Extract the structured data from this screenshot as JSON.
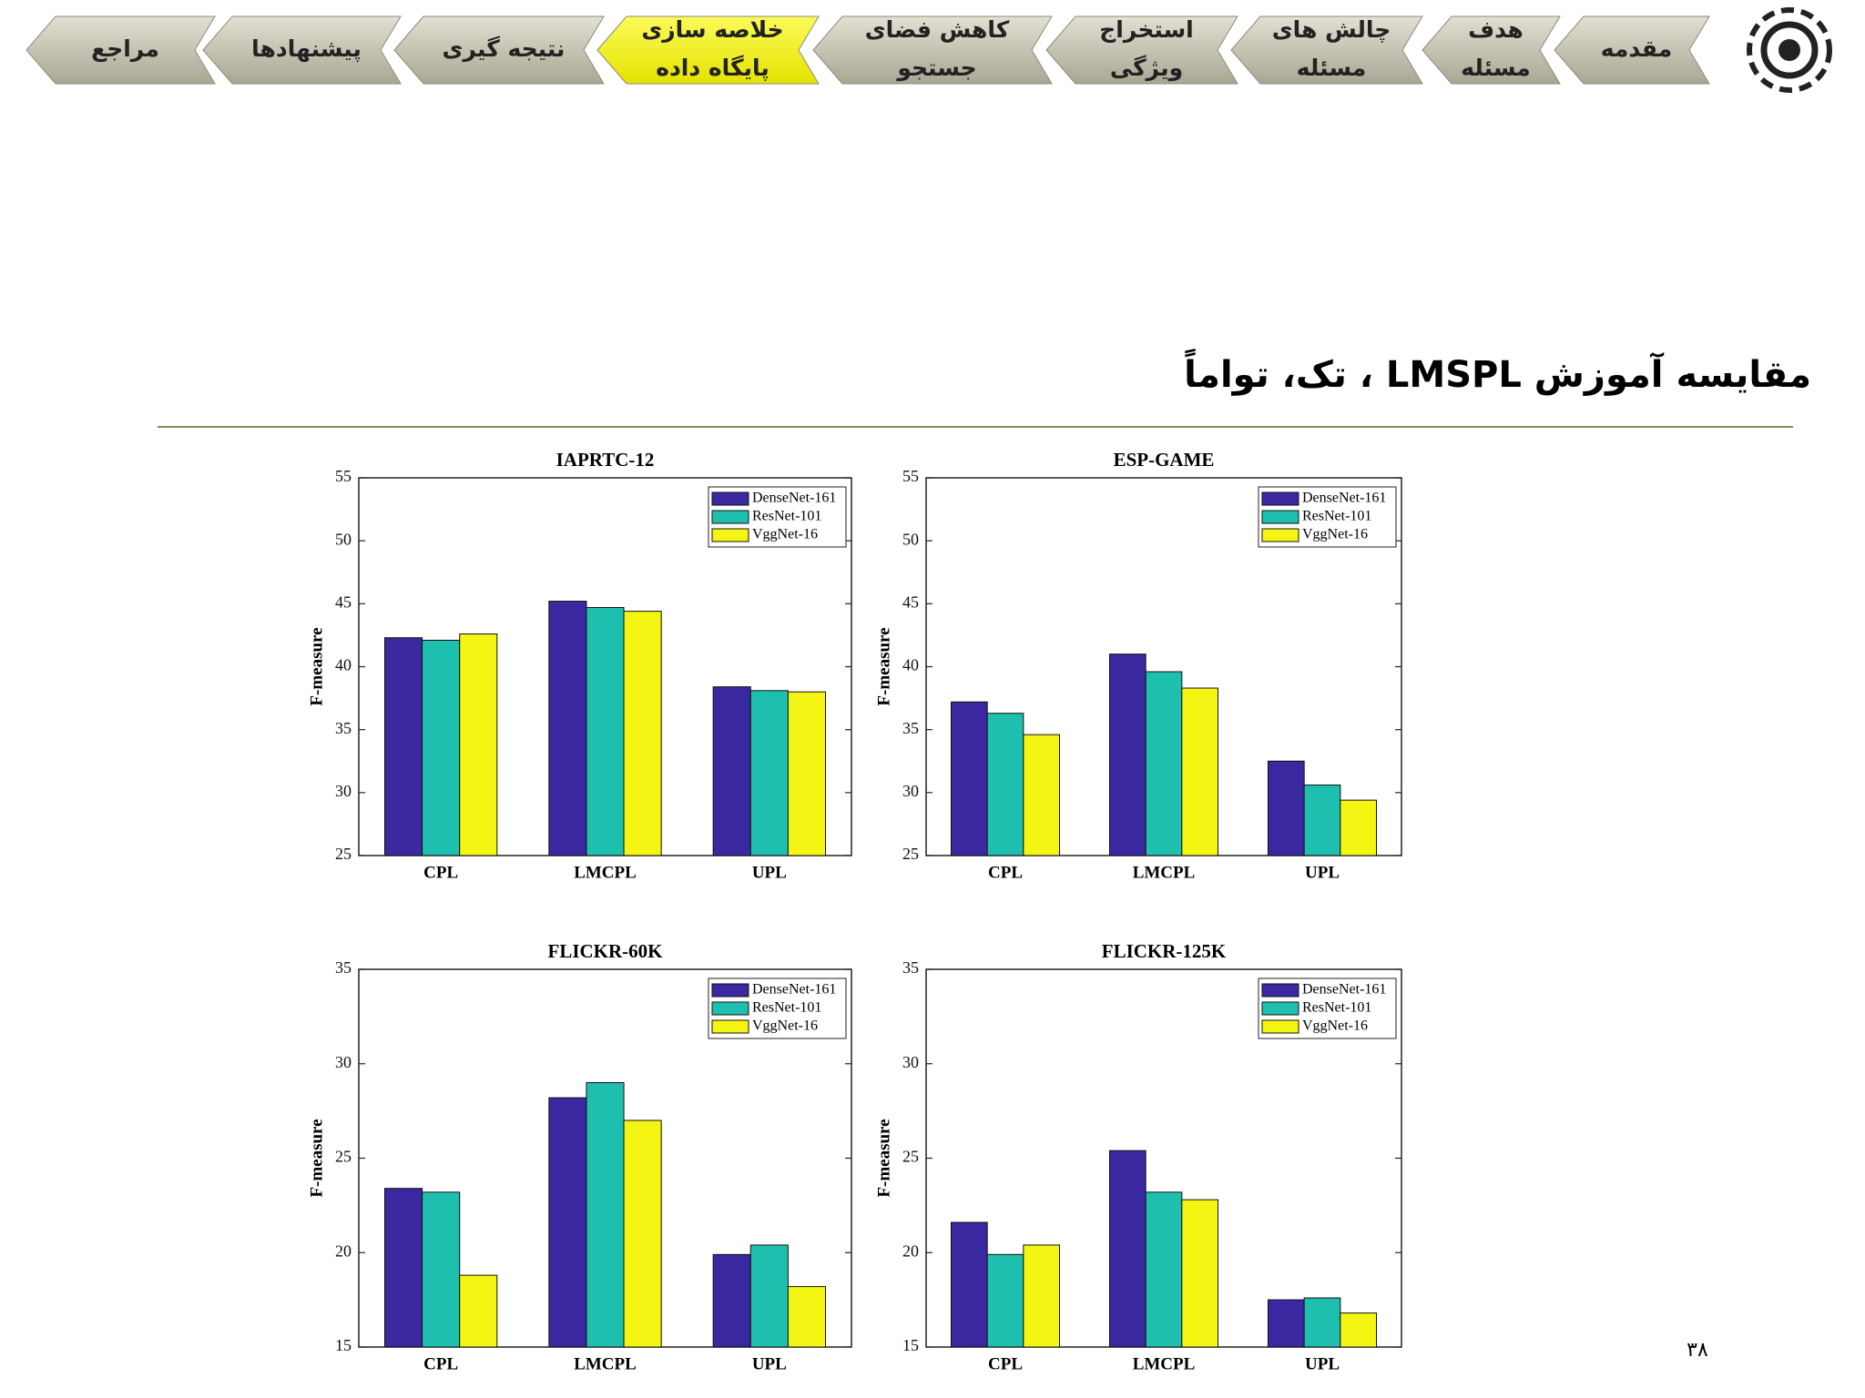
{
  "nav": {
    "tabs": [
      [
        "مقدمه"
      ],
      [
        "هدف",
        "مسئله"
      ],
      [
        "چالش های",
        "مسئله"
      ],
      [
        "استخراج",
        "ویژگی"
      ],
      [
        "کاهش فضای",
        "جستجو"
      ],
      [
        "خلاصه سازی",
        "پایگاه داده"
      ],
      [
        "نتیجه گیری"
      ],
      [
        "پیشنهادها"
      ],
      [
        "مراجع"
      ]
    ],
    "active": 5
  },
  "title": "مقایسه آموزش LMSPL ، تک، تواماً",
  "page_number": "۳۸",
  "chart_data": [
    {
      "type": "bar",
      "title": "IAPRTC-12",
      "y_label": "F-measure",
      "categories": [
        "CPL",
        "LMCPL",
        "UPL"
      ],
      "series": [
        {
          "name": "DenseNet-161",
          "color": "#3a28a0",
          "values": [
            42.3,
            45.2,
            38.4
          ]
        },
        {
          "name": "ResNet-101",
          "color": "#1fbfb0",
          "values": [
            42.1,
            44.7,
            38.1
          ]
        },
        {
          "name": "VggNet-16",
          "color": "#f5f514",
          "values": [
            42.6,
            44.4,
            38.0
          ]
        }
      ],
      "ylim": [
        25,
        55
      ],
      "yticks": [
        25,
        30,
        35,
        40,
        45,
        50,
        55
      ],
      "legend": "upper-right"
    },
    {
      "type": "bar",
      "title": "ESP-GAME",
      "y_label": "F-measure",
      "categories": [
        "CPL",
        "LMCPL",
        "UPL"
      ],
      "series": [
        {
          "name": "DenseNet-161",
          "color": "#3a28a0",
          "values": [
            37.2,
            41.0,
            32.5
          ]
        },
        {
          "name": "ResNet-101",
          "color": "#1fbfb0",
          "values": [
            36.3,
            39.6,
            30.6
          ]
        },
        {
          "name": "VggNet-16",
          "color": "#f5f514",
          "values": [
            34.6,
            38.3,
            29.4
          ]
        }
      ],
      "ylim": [
        25,
        55
      ],
      "yticks": [
        25,
        30,
        35,
        40,
        45,
        50,
        55
      ],
      "legend": "upper-right"
    },
    {
      "type": "bar",
      "title": "FLICKR-60K",
      "y_label": "F-measure",
      "categories": [
        "CPL",
        "LMCPL",
        "UPL"
      ],
      "series": [
        {
          "name": "DenseNet-161",
          "color": "#3a28a0",
          "values": [
            23.4,
            28.2,
            19.9
          ]
        },
        {
          "name": "ResNet-101",
          "color": "#1fbfb0",
          "values": [
            23.2,
            29.0,
            20.4
          ]
        },
        {
          "name": "VggNet-16",
          "color": "#f5f514",
          "values": [
            18.8,
            27.0,
            18.2
          ]
        }
      ],
      "ylim": [
        15,
        35
      ],
      "yticks": [
        15,
        20,
        25,
        30,
        35
      ],
      "legend": "upper-right"
    },
    {
      "type": "bar",
      "title": "FLICKR-125K",
      "y_label": "F-measure",
      "categories": [
        "CPL",
        "LMCPL",
        "UPL"
      ],
      "series": [
        {
          "name": "DenseNet-161",
          "color": "#3a28a0",
          "values": [
            21.6,
            25.4,
            17.5
          ]
        },
        {
          "name": "ResNet-101",
          "color": "#1fbfb0",
          "values": [
            19.9,
            23.2,
            17.6
          ]
        },
        {
          "name": "VggNet-16",
          "color": "#f5f514",
          "values": [
            20.4,
            22.8,
            16.8
          ]
        }
      ],
      "ylim": [
        15,
        35
      ],
      "yticks": [
        15,
        20,
        25,
        30,
        35
      ],
      "legend": "upper-right"
    }
  ]
}
